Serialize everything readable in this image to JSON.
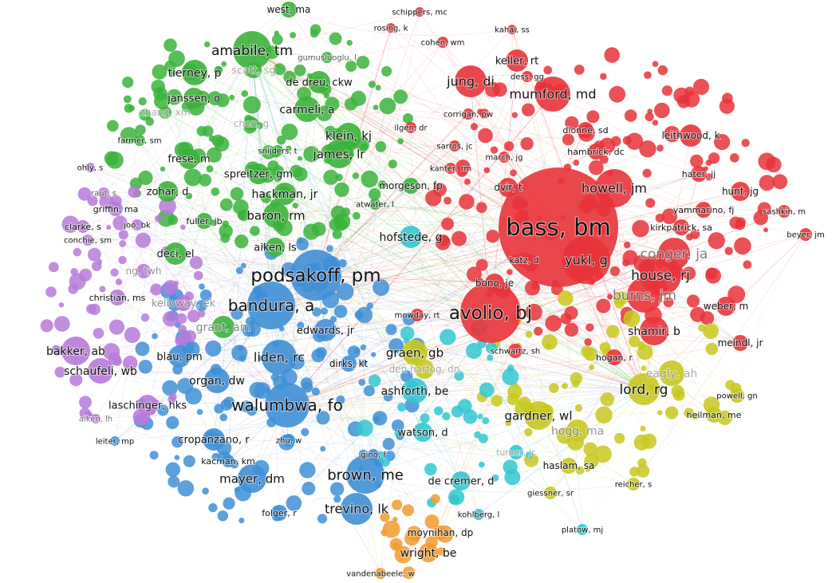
{
  "chart_data": {
    "type": "co-citation network",
    "colors": {
      "red": "#e8333a",
      "green": "#3bb33b",
      "blue": "#3f8fd6",
      "yellow": "#c8c81e",
      "purple": "#b77ad9",
      "cyan": "#33c7d1",
      "orange": "#f29a2e"
    },
    "clusters": [
      {
        "color": "red",
        "nodes": [
          "bass, bm",
          "avolio, bj",
          "yukl, g",
          "house, rj",
          "howell, jm",
          "conger, ja",
          "burns, jm",
          "mumford, md",
          "jung, di",
          "keller, rt",
          "shamir, b",
          "dvir, t",
          "hunt, jg",
          "leithwood, k",
          "dionne, sd",
          "hambrick, dc",
          "kirkpatrick, sa",
          "yammarino, fj",
          "hater, jj",
          "sashkin, m",
          "beyer, jm",
          "weber, m",
          "meindl, jr",
          "hogan, r",
          "katz, d",
          "bono, je",
          "mowday, rt",
          "schwartz, sh",
          "kanter, rm",
          "march, jg",
          "sarros, jc",
          "corrigan, pw",
          "ilgen, dr",
          "dess, gg",
          "kahai, ss",
          "cohen, wm",
          "rosing, k",
          "schippers, mc"
        ]
      },
      {
        "color": "green",
        "nodes": [
          "amabile, tm",
          "tierney, p",
          "janssen, o",
          "carmeli, a",
          "klein, kj",
          "james, lr",
          "de dreu, ckw",
          "frese, m",
          "spreitzer, gm",
          "hackman, jr",
          "baron, rm",
          "zohar, d",
          "morgeson, fp",
          "aiken, ls",
          "deci, el",
          "fuller, jb",
          "west, ma",
          "farmer, sm",
          "gumusluoglu, l",
          "scott, sg",
          "snijders, t",
          "atwater, l",
          "grant, am",
          "zhang, xm",
          "chen, g"
        ]
      },
      {
        "color": "blue",
        "nodes": [
          "podsakoff, pm",
          "bandura, a",
          "walumbwa, fo",
          "liden, rc",
          "brown, me",
          "mayer, dm",
          "trevino, lk",
          "organ, dw",
          "blau, pm",
          "cropanzano, r",
          "edwards, jr",
          "dirks, kt",
          "kacman, km",
          "folger, r",
          "zhu, w",
          "gino, f",
          "leiter, mp"
        ]
      },
      {
        "color": "purple",
        "nodes": [
          "bakker, ab",
          "schaufeli, wb",
          "laschinger, hks",
          "christian, ms",
          "griffin, ma",
          "joo, bk",
          "clarke, s",
          "conchie, sm",
          "raut, s",
          "kelloway, ek",
          "aiken, lh",
          "ng, twh",
          "ohly, s"
        ]
      },
      {
        "color": "yellow",
        "nodes": [
          "lord, rg",
          "gardner, wl",
          "graen, gb",
          "hogg, ma",
          "heilman, me",
          "powell, gn",
          "haslam, sa",
          "reicher, s",
          "giessner, sr",
          "den hartog, dn",
          "eagly, ah"
        ]
      },
      {
        "color": "cyan",
        "nodes": [
          "ashforth, be",
          "watson, d",
          "de cremer, d",
          "kohlberg, l",
          "platow, mj",
          "turner, jc",
          "hofstede, g"
        ]
      },
      {
        "color": "orange",
        "nodes": [
          "moynihan, dp",
          "wright, be",
          "vandenabeele, w"
        ]
      }
    ]
  }
}
